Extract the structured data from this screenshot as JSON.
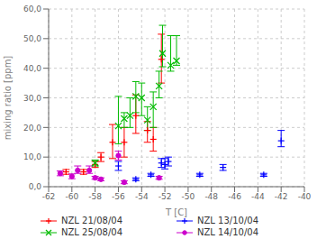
{
  "chart_data": {
    "type": "scatter",
    "title": "",
    "xlabel": "T [C]",
    "ylabel": "mixing ratio [ppm]",
    "xlim": [
      -62,
      -40
    ],
    "ylim": [
      0.0,
      60.0
    ],
    "xticks": [
      -62,
      -60,
      -58,
      -56,
      -54,
      -52,
      -50,
      -48,
      -46,
      -44,
      -42,
      -40
    ],
    "yticks": [
      {
        "value": 0,
        "label": "0,0"
      },
      {
        "value": 10,
        "label": "10,0"
      },
      {
        "value": 20,
        "label": "20,0"
      },
      {
        "value": 30,
        "label": "30,0"
      },
      {
        "value": 40,
        "label": "40,0"
      },
      {
        "value": 50,
        "label": "50,0"
      },
      {
        "value": 60,
        "label": "60,0"
      }
    ],
    "grid": true,
    "legend": "bottom",
    "series": [
      {
        "name": "NZL 21/08/04",
        "color": "#ff0000",
        "marker": "plus",
        "x": [
          -60.5,
          -59.0,
          -58.0,
          -57.5,
          -56.5,
          -55.5,
          -54.5,
          -53.5,
          -53.0,
          -52.3
        ],
        "values": [
          5.0,
          5.0,
          7.5,
          10.0,
          15.0,
          15.0,
          24.0,
          19.0,
          16.0,
          43.0
        ],
        "yerr_lo": [
          0.8,
          0.8,
          1.0,
          1.5,
          5.5,
          5.0,
          6.0,
          4.0,
          4.0,
          8.0
        ],
        "yerr_hi": [
          0.8,
          0.8,
          1.0,
          1.5,
          6.0,
          5.0,
          7.0,
          3.0,
          4.0,
          8.5
        ]
      },
      {
        "name": "NZL 25/08/04",
        "color": "#00bb00",
        "marker": "cross",
        "x": [
          -58.0,
          -56.0,
          -55.5,
          -55.0,
          -54.5,
          -54.0,
          -53.5,
          -53.0,
          -52.5,
          -52.2,
          -51.5,
          -51.0
        ],
        "values": [
          8.0,
          20.5,
          23.0,
          24.0,
          30.5,
          30.0,
          22.5,
          27.0,
          34.0,
          45.0,
          41.0,
          42.5
        ],
        "yerr_lo": [
          1.0,
          6.0,
          3.0,
          4.0,
          5.5,
          6.0,
          3.5,
          7.0,
          4.0,
          4.5,
          2.0,
          1.5
        ],
        "yerr_hi": [
          1.0,
          10.0,
          2.0,
          6.0,
          5.0,
          5.0,
          4.5,
          5.0,
          5.0,
          9.5,
          10.0,
          8.5
        ]
      },
      {
        "name": "NZL 13/10/04",
        "color": "#0000ff",
        "marker": "plus",
        "x": [
          -56.0,
          -54.5,
          -53.2,
          -52.3,
          -52.0,
          -51.7,
          -49.0,
          -47.0,
          -43.5,
          -42.0
        ],
        "values": [
          7.0,
          2.5,
          4.0,
          8.0,
          7.5,
          8.5,
          4.0,
          6.5,
          4.0,
          15.5
        ],
        "yerr_lo": [
          1.5,
          0.5,
          0.5,
          1.5,
          1.5,
          1.5,
          0.5,
          1.0,
          0.5,
          2.0
        ],
        "yerr_hi": [
          1.5,
          0.5,
          0.5,
          1.5,
          2.0,
          1.5,
          0.5,
          1.0,
          0.5,
          3.5
        ]
      },
      {
        "name": "NZL 14/10/04",
        "color": "#cc00cc",
        "marker": "circle",
        "x": [
          -61.0,
          -60.0,
          -59.5,
          -58.5,
          -58.0,
          -57.5,
          -56.0,
          -55.5,
          -52.5
        ],
        "values": [
          4.5,
          3.5,
          5.5,
          5.5,
          3.0,
          2.5,
          10.5,
          1.5,
          3.0
        ],
        "yerr_lo": [
          0.8,
          0.8,
          1.0,
          1.0,
          0.5,
          0.5,
          1.5,
          0.5,
          0.5
        ],
        "yerr_hi": [
          0.8,
          0.8,
          1.5,
          1.5,
          0.5,
          0.5,
          1.5,
          0.5,
          0.5
        ]
      }
    ]
  }
}
